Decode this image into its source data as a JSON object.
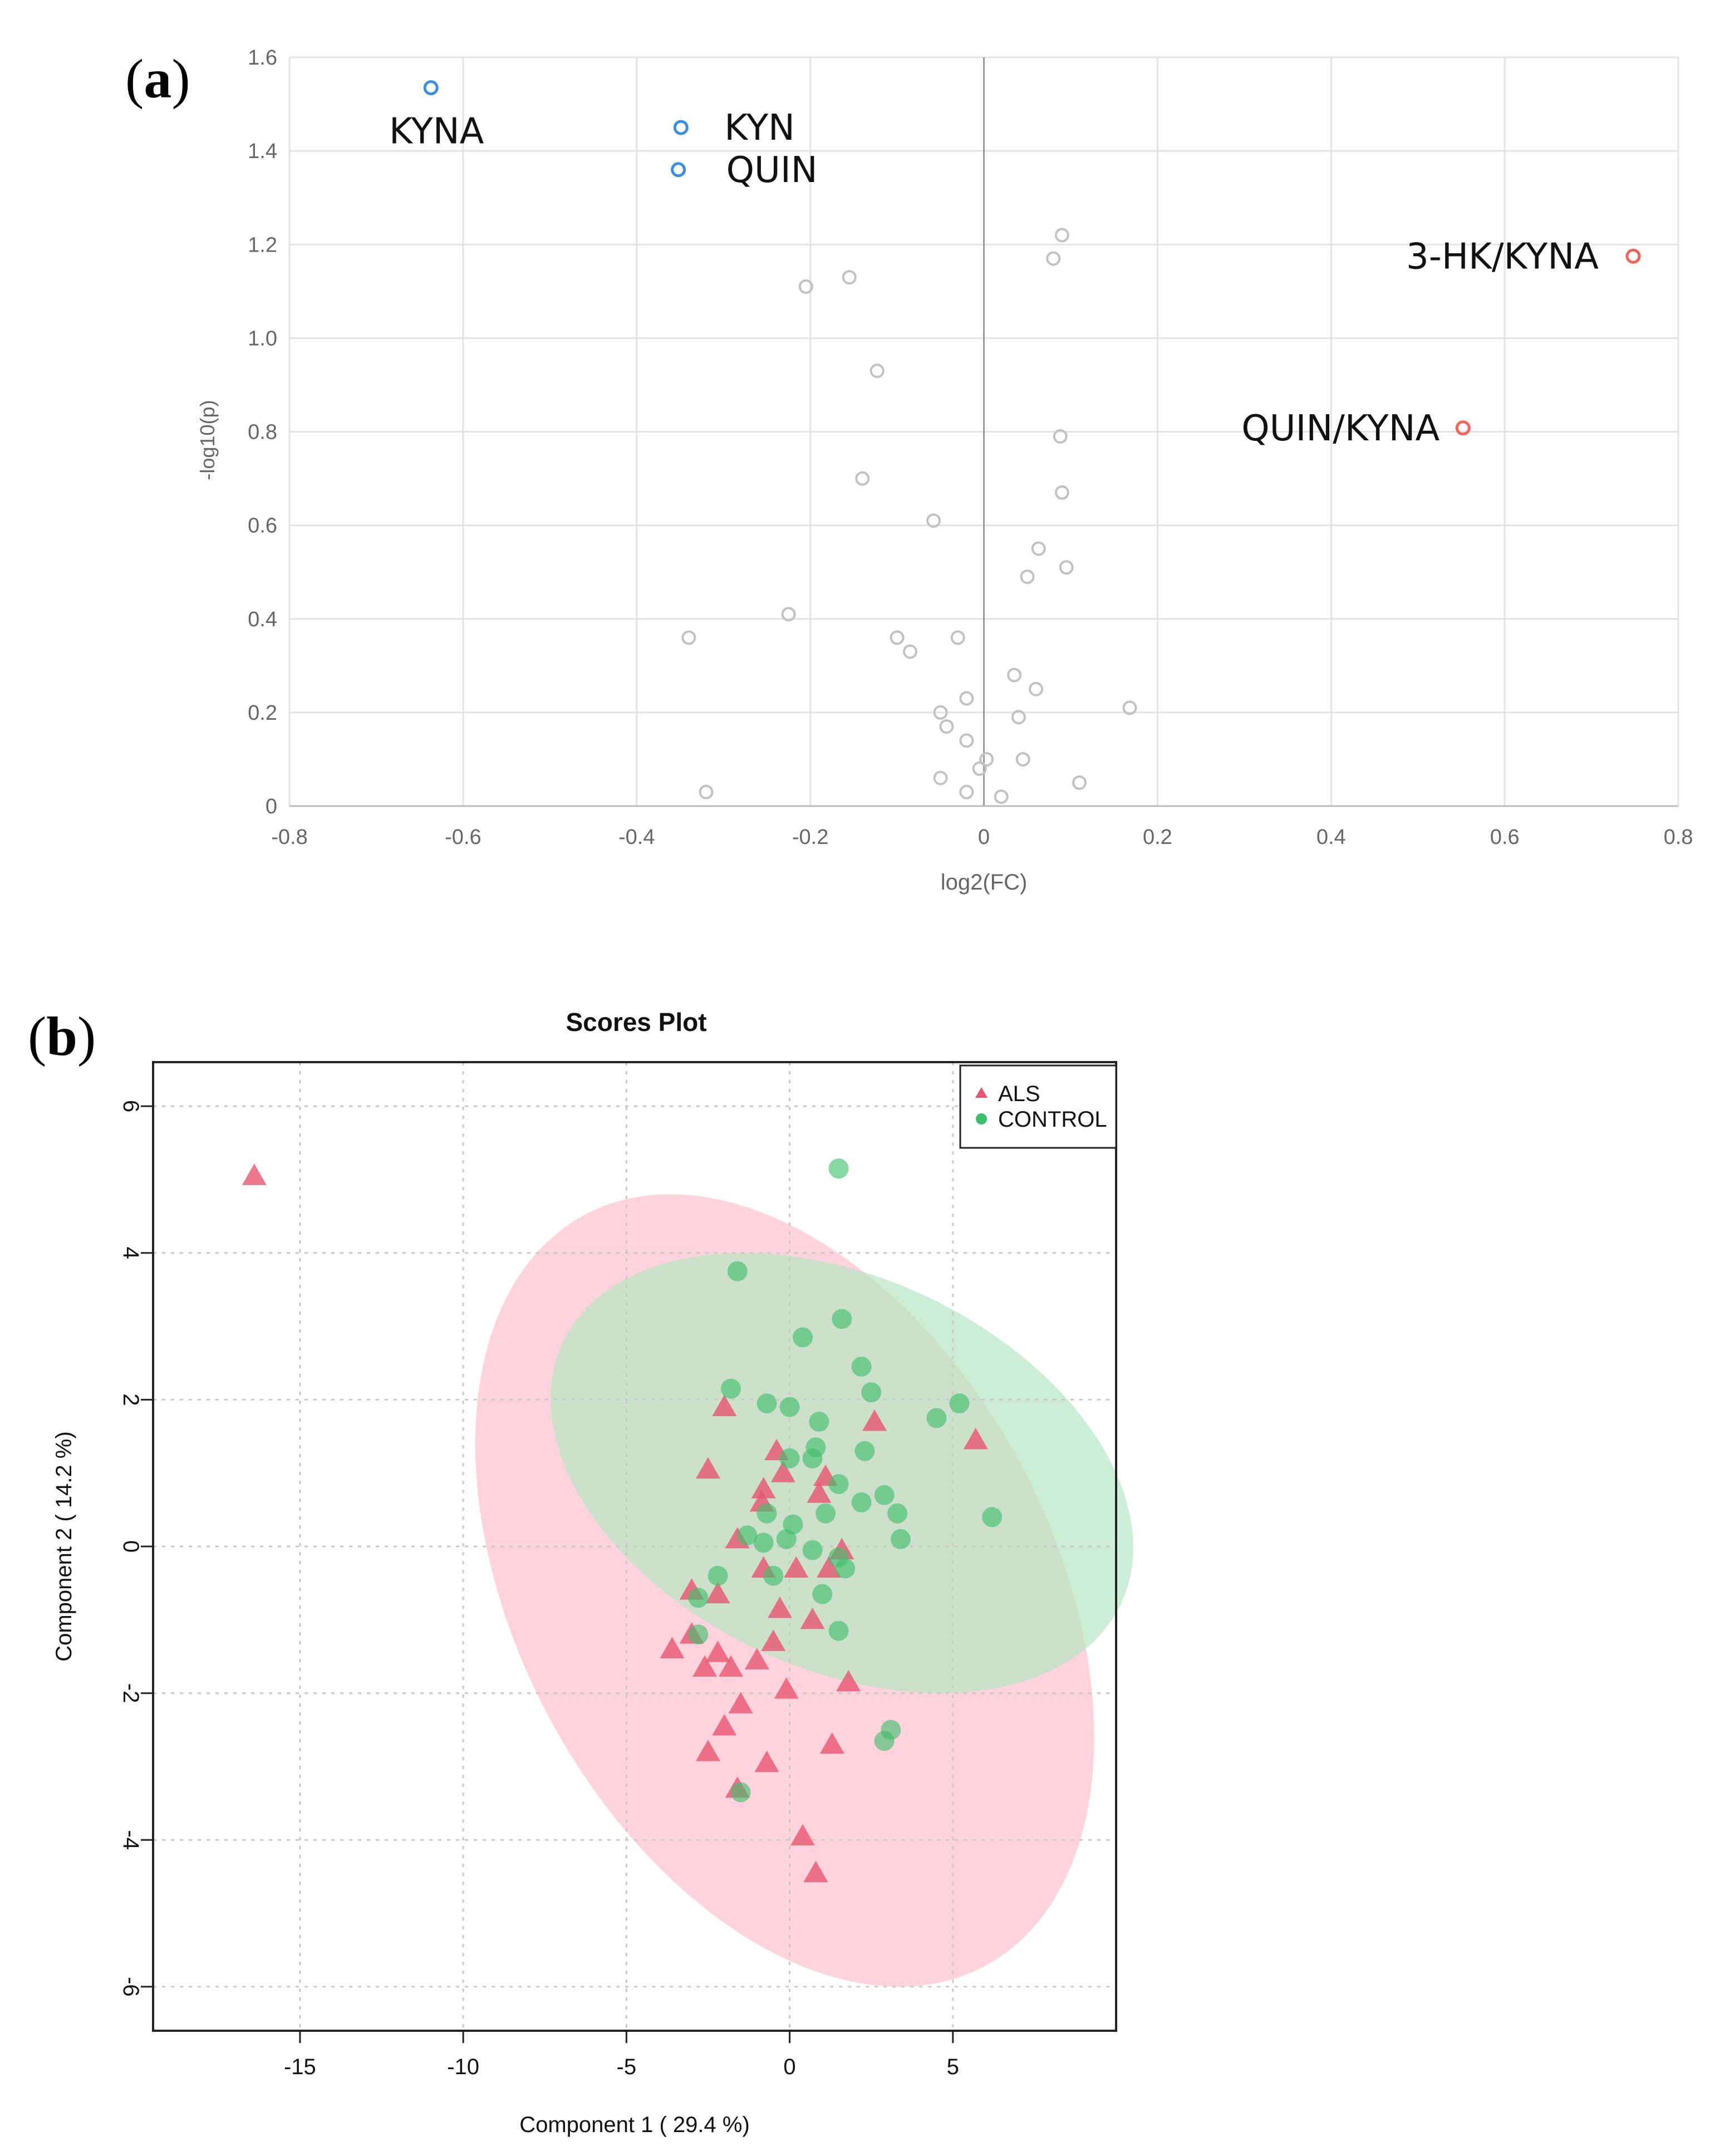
{
  "panel_a": {
    "label_open": "(",
    "label_letter": "a",
    "label_close": ")"
  },
  "panel_b": {
    "label_open": "(",
    "label_letter": "b",
    "label_close": ")"
  },
  "chart_data": [
    {
      "type": "scatter",
      "subtype": "volcano",
      "title": "",
      "xlabel": "log2(FC)",
      "ylabel": "-log10(p)",
      "xlim": [
        -0.8,
        0.8
      ],
      "ylim": [
        0,
        1.6
      ],
      "xticks": [
        -0.8,
        -0.6,
        -0.4,
        -0.2,
        0,
        0.2,
        0.4,
        0.6,
        0.8
      ],
      "xtick_labels": [
        "-0.8",
        "-0.6",
        "-0.4",
        "-0.2",
        "0",
        "0.2",
        "0.4",
        "0.6",
        "0.8"
      ],
      "yticks": [
        0,
        0.2,
        0.4,
        0.6,
        0.8,
        1.0,
        1.2,
        1.4,
        1.6
      ],
      "ytick_labels": [
        "0",
        "0.2",
        "0.4",
        "0.6",
        "0.8",
        "1.0",
        "1.2",
        "1.4",
        "1.6"
      ],
      "grid": true,
      "colors": {
        "decreased": "#3b8fe0",
        "increased": "#f0645a",
        "not_significant": "#c2c2c2"
      },
      "labeled_points": [
        {
          "label": "KYNA",
          "x": -0.637,
          "y": 1.535,
          "group": "decreased"
        },
        {
          "label": "KYN",
          "x": -0.349,
          "y": 1.45,
          "group": "decreased"
        },
        {
          "label": "QUIN",
          "x": -0.352,
          "y": 1.36,
          "group": "decreased"
        },
        {
          "label": "3-HK/KYNA",
          "x": 0.748,
          "y": 1.175,
          "group": "increased"
        },
        {
          "label": "QUIN/KYNA",
          "x": 0.552,
          "y": 0.808,
          "group": "increased"
        }
      ],
      "points": [
        {
          "x": 0.09,
          "y": 1.22
        },
        {
          "x": 0.08,
          "y": 1.17
        },
        {
          "x": -0.155,
          "y": 1.13
        },
        {
          "x": -0.205,
          "y": 1.11
        },
        {
          "x": -0.123,
          "y": 0.93
        },
        {
          "x": 0.088,
          "y": 0.79
        },
        {
          "x": -0.14,
          "y": 0.7
        },
        {
          "x": 0.09,
          "y": 0.67
        },
        {
          "x": -0.058,
          "y": 0.61
        },
        {
          "x": 0.063,
          "y": 0.55
        },
        {
          "x": 0.095,
          "y": 0.51
        },
        {
          "x": 0.05,
          "y": 0.49
        },
        {
          "x": -0.225,
          "y": 0.41
        },
        {
          "x": -0.34,
          "y": 0.36
        },
        {
          "x": -0.1,
          "y": 0.36
        },
        {
          "x": -0.03,
          "y": 0.36
        },
        {
          "x": -0.085,
          "y": 0.33
        },
        {
          "x": 0.035,
          "y": 0.28
        },
        {
          "x": 0.06,
          "y": 0.25
        },
        {
          "x": -0.02,
          "y": 0.23
        },
        {
          "x": 0.168,
          "y": 0.21
        },
        {
          "x": -0.05,
          "y": 0.2
        },
        {
          "x": 0.04,
          "y": 0.19
        },
        {
          "x": -0.043,
          "y": 0.17
        },
        {
          "x": -0.02,
          "y": 0.14
        },
        {
          "x": 0.003,
          "y": 0.1
        },
        {
          "x": 0.045,
          "y": 0.1
        },
        {
          "x": -0.005,
          "y": 0.08
        },
        {
          "x": -0.05,
          "y": 0.06
        },
        {
          "x": 0.11,
          "y": 0.05
        },
        {
          "x": -0.32,
          "y": 0.03
        },
        {
          "x": -0.02,
          "y": 0.03
        },
        {
          "x": 0.02,
          "y": 0.02
        }
      ]
    },
    {
      "type": "scatter",
      "subtype": "pls-da scores",
      "title": "Scores Plot",
      "xlabel": "Component 1 ( 29.4 %)",
      "ylabel": "Component 2 ( 14.2 %)",
      "xlim": [
        -19.5,
        10
      ],
      "ylim": [
        -6.6,
        6.6
      ],
      "xticks": [
        -15,
        -10,
        -5,
        0,
        5
      ],
      "xtick_labels": [
        "-15",
        "-10",
        "-5",
        "0",
        "5"
      ],
      "yticks": [
        -6,
        -4,
        -2,
        0,
        2,
        4,
        6
      ],
      "ytick_labels": [
        "-6",
        "-4",
        "-2",
        "0",
        "2",
        "4",
        "6"
      ],
      "grid": "dotted",
      "legend": {
        "position": "top-right",
        "entries": [
          "ALS",
          "CONTROL"
        ]
      },
      "series": [
        {
          "name": "ALS",
          "marker": "triangle",
          "color": "#e8536e",
          "ellipse": {
            "center": [
              -0.15,
              -0.6
            ],
            "rx": 8.2,
            "ry": 5.8,
            "rotation_deg": -28,
            "fill": "#ffc0cf"
          },
          "points": [
            [
              -16.4,
              5.05
            ],
            [
              -2.0,
              1.9
            ],
            [
              -2.5,
              1.05
            ],
            [
              -0.4,
              1.3
            ],
            [
              -0.2,
              1.0
            ],
            [
              -0.8,
              0.78
            ],
            [
              0.9,
              0.72
            ],
            [
              1.1,
              0.95
            ],
            [
              2.6,
              1.7
            ],
            [
              5.7,
              1.45
            ],
            [
              -0.85,
              0.6
            ],
            [
              -1.6,
              0.1
            ],
            [
              -0.8,
              -0.3
            ],
            [
              0.2,
              -0.3
            ],
            [
              1.2,
              -0.3
            ],
            [
              -3.0,
              -0.6
            ],
            [
              -2.2,
              -0.65
            ],
            [
              -0.3,
              -0.85
            ],
            [
              1.6,
              -0.05
            ],
            [
              -3.6,
              -1.4
            ],
            [
              -2.2,
              -1.45
            ],
            [
              -2.6,
              -1.65
            ],
            [
              -1.8,
              -1.65
            ],
            [
              -1.0,
              -1.55
            ],
            [
              -0.5,
              -1.3
            ],
            [
              0.7,
              -1.0
            ],
            [
              1.8,
              -1.85
            ],
            [
              -1.5,
              -2.15
            ],
            [
              -0.1,
              -1.95
            ],
            [
              -2.0,
              -2.45
            ],
            [
              -2.5,
              -2.8
            ],
            [
              -0.7,
              -2.95
            ],
            [
              1.3,
              -2.7
            ],
            [
              0.4,
              -3.95
            ],
            [
              0.8,
              -4.45
            ],
            [
              -3.0,
              -1.2
            ],
            [
              -1.6,
              -3.3
            ]
          ]
        },
        {
          "name": "CONTROL",
          "marker": "circle",
          "color": "#3dbf6a",
          "ellipse": {
            "center": [
              1.6,
              1.0
            ],
            "rx": 6.0,
            "ry": 4.2,
            "rotation_deg": -65,
            "fill": "#b7e6c5"
          },
          "points": [
            [
              1.5,
              5.15
            ],
            [
              -1.6,
              3.75
            ],
            [
              1.6,
              3.1
            ],
            [
              0.4,
              2.85
            ],
            [
              2.2,
              2.45
            ],
            [
              2.5,
              2.1
            ],
            [
              -1.8,
              2.15
            ],
            [
              -0.7,
              1.95
            ],
            [
              0.0,
              1.9
            ],
            [
              0.9,
              1.7
            ],
            [
              4.5,
              1.75
            ],
            [
              5.2,
              1.95
            ],
            [
              0.8,
              1.35
            ],
            [
              0.7,
              1.2
            ],
            [
              0.0,
              1.2
            ],
            [
              2.3,
              1.3
            ],
            [
              1.5,
              0.85
            ],
            [
              2.9,
              0.7
            ],
            [
              3.3,
              0.45
            ],
            [
              6.2,
              0.4
            ],
            [
              2.2,
              0.6
            ],
            [
              1.1,
              0.45
            ],
            [
              0.1,
              0.3
            ],
            [
              -0.7,
              0.45
            ],
            [
              -1.3,
              0.15
            ],
            [
              -0.8,
              0.05
            ],
            [
              -0.1,
              0.1
            ],
            [
              0.7,
              -0.05
            ],
            [
              1.5,
              -0.15
            ],
            [
              1.7,
              -0.3
            ],
            [
              3.4,
              0.1
            ],
            [
              -2.2,
              -0.4
            ],
            [
              -0.5,
              -0.4
            ],
            [
              -2.8,
              -0.7
            ],
            [
              1.0,
              -0.65
            ],
            [
              -2.8,
              -1.2
            ],
            [
              1.5,
              -1.15
            ],
            [
              3.1,
              -2.5
            ],
            [
              2.9,
              -2.65
            ],
            [
              -1.5,
              -3.35
            ]
          ]
        }
      ]
    }
  ]
}
